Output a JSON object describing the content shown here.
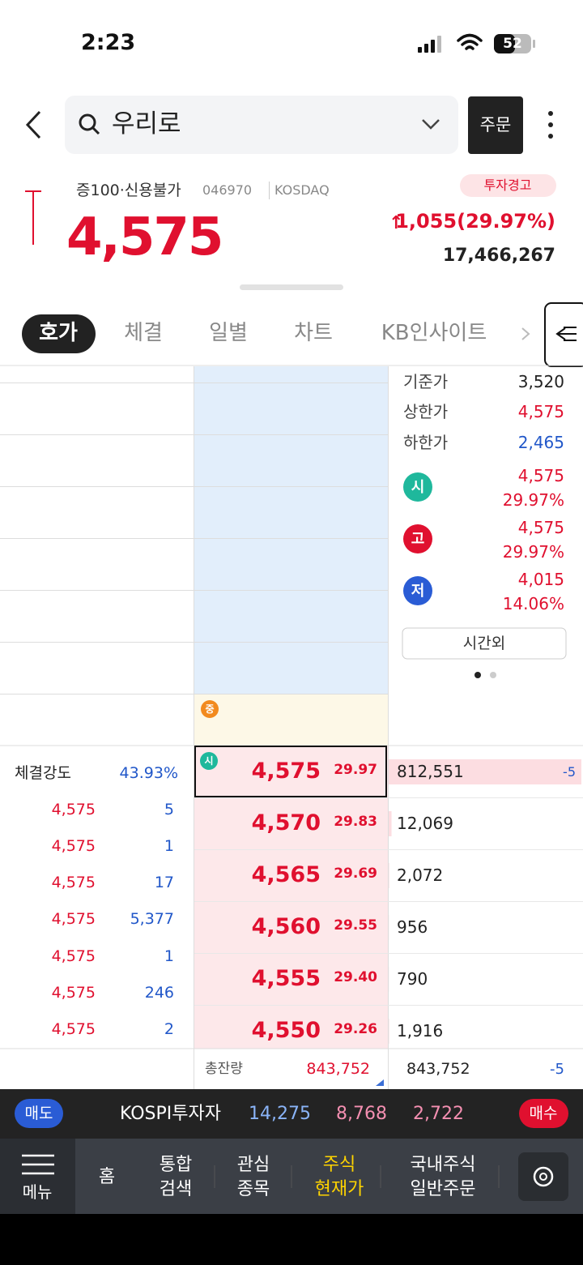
{
  "status": {
    "time": "2:23",
    "battery": "52"
  },
  "search": {
    "query": "우리로",
    "order_button": "주문"
  },
  "stock": {
    "tags": "증100·신용불가",
    "code": "046970",
    "market": "KOSDAQ",
    "warning": "투자경고",
    "price": "4,575",
    "arrow": "↑",
    "change": "1,055(29.97%)",
    "volume": "17,466,267"
  },
  "tabs": [
    "호가",
    "체결",
    "일별",
    "차트",
    "KB인사이트"
  ],
  "info": {
    "rows": [
      {
        "label": "기준가",
        "value": "3,520"
      },
      {
        "label": "상한가",
        "value": "4,575"
      },
      {
        "label": "하한가",
        "value": "2,465"
      }
    ],
    "badges": [
      {
        "badge": "시",
        "price": "4,575",
        "pct": "29.97%"
      },
      {
        "badge": "고",
        "price": "4,575",
        "pct": "29.97%"
      },
      {
        "badge": "저",
        "price": "4,015",
        "pct": "14.06%"
      }
    ],
    "after_hours": "시간외"
  },
  "mid_badge": "중",
  "strength": {
    "label": "체결강도",
    "value": "43.93%"
  },
  "trades": [
    {
      "price": "4,575",
      "qty": "5"
    },
    {
      "price": "4,575",
      "qty": "1"
    },
    {
      "price": "4,575",
      "qty": "17"
    },
    {
      "price": "4,575",
      "qty": "5,377"
    },
    {
      "price": "4,575",
      "qty": "1"
    },
    {
      "price": "4,575",
      "qty": "246"
    },
    {
      "price": "4,575",
      "qty": "2"
    }
  ],
  "asks": [
    {
      "badge": "시",
      "price": "4,575",
      "pct": "29.97",
      "qty": "812,551",
      "change": "-5",
      "selected": true
    },
    {
      "price": "4,570",
      "pct": "29.83",
      "qty": "12,069"
    },
    {
      "price": "4,565",
      "pct": "29.69",
      "qty": "2,072"
    },
    {
      "price": "4,560",
      "pct": "29.55",
      "qty": "956"
    },
    {
      "price": "4,555",
      "pct": "29.40",
      "qty": "790"
    },
    {
      "price": "4,550",
      "pct": "29.26",
      "qty": "1,916"
    }
  ],
  "total": {
    "label": "총잔량",
    "value": "843,752",
    "right_value": "843,752",
    "change": "-5"
  },
  "ticker": {
    "sell": "매도",
    "name": "KOSPI투자자",
    "values": [
      "14,275",
      "8,768",
      "2,722"
    ],
    "buy": "매수"
  },
  "nav": {
    "menu": "메뉴",
    "items": [
      {
        "lines": [
          "홈"
        ]
      },
      {
        "lines": [
          "통합",
          "검색"
        ]
      },
      {
        "lines": [
          "관심",
          "종목"
        ]
      },
      {
        "lines": [
          "주식",
          "현재가"
        ],
        "active": true
      },
      {
        "lines": [
          "국내주식",
          "일반주문"
        ]
      }
    ]
  }
}
